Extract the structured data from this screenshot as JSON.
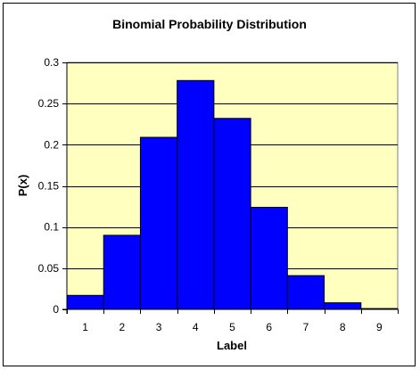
{
  "chart_data": {
    "type": "bar",
    "title": "Binomial Probability Distribution",
    "xlabel": "Label",
    "ylabel": "P(x)",
    "categories": [
      "1",
      "2",
      "3",
      "4",
      "5",
      "6",
      "7",
      "8",
      "9"
    ],
    "values": [
      0.017,
      0.09,
      0.209,
      0.278,
      0.232,
      0.124,
      0.041,
      0.008,
      0.001
    ],
    "ylim": [
      0,
      0.3
    ],
    "yticks": [
      "0",
      "0.05",
      "0.1",
      "0.15",
      "0.2",
      "0.25",
      "0.3"
    ],
    "grid": true,
    "legend": "none",
    "colors": {
      "bar_fill": "#0000ff",
      "bar_stroke": "#000000",
      "plot_background": "#ffffc0",
      "gridline": "#000000"
    }
  }
}
